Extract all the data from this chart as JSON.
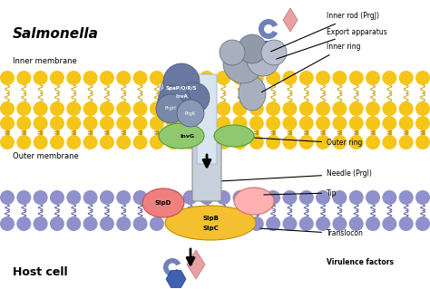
{
  "background_color": "#ffffff",
  "salmonella_label": "Salmonella",
  "host_cell_label": "Host cell",
  "inner_membrane_label": "Inner membrane",
  "outer_membrane_label": "Outer membrane",
  "gold_color": "#F5C518",
  "gold_dark": "#C8A000",
  "purple_color": "#9090CC",
  "purple_dark": "#6060A0",
  "gray_line": "#A0A0A0",
  "needle_fill": "#C8D0DC",
  "needle_edge": "#909090",
  "apparatus_gray": "#909AAA",
  "apparatus_edge": "#606878",
  "inner_ring_gray": "#A8B0C0",
  "spa_blue": "#6878A0",
  "spa_edge": "#485870",
  "green_ring": "#90C870",
  "green_ring_edge": "#50A030",
  "sipD_color": "#F08080",
  "sipD_edge": "#C05050",
  "tip_color": "#FFB0B0",
  "tip_edge": "#D07070",
  "translocon_color": "#F5C030",
  "translocon_edge": "#C09000",
  "crescent_color": "#7080B8",
  "diamond_color": "#E8A0A0",
  "hexagon_color": "#4060B0",
  "n_gold_circles": 26,
  "n_purple_circles": 26
}
